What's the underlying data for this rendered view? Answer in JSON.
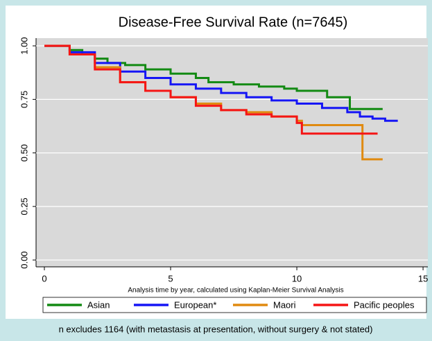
{
  "chart_data": {
    "type": "line",
    "drawstyle": "steps-post",
    "title": "Disease-Free Survival Rate (n=7645)",
    "x_label": "Analysis time by year, calculated using Kaplan-Meier Survival Analysis",
    "footnote": "n excludes 1164 (with metastasis at presentation, without surgery & not stated)",
    "xlim": [
      -0.33,
      15.19
    ],
    "ylim": [
      -0.032,
      1.036
    ],
    "xticks": [
      0,
      5,
      10,
      15
    ],
    "yticks": [
      {
        "value": 0,
        "label": "0.00"
      },
      {
        "value": 0.25,
        "label": "0.25"
      },
      {
        "value": 0.5,
        "label": "0.50"
      },
      {
        "value": 0.75,
        "label": "0.75"
      },
      {
        "value": 1,
        "label": "1.00"
      }
    ],
    "grid": true,
    "legend": "bottom",
    "series": [
      {
        "name": "Asian",
        "color": "#138a13",
        "x": [
          0,
          1,
          1.5,
          2,
          2.5,
          3.2,
          4,
          5,
          6,
          6.5,
          7.5,
          8.5,
          9.5,
          10,
          11.2,
          12.1,
          13.4
        ],
        "values": [
          1,
          0.98,
          0.96,
          0.94,
          0.92,
          0.91,
          0.89,
          0.87,
          0.85,
          0.83,
          0.82,
          0.81,
          0.8,
          0.79,
          0.76,
          0.705,
          0.705
        ]
      },
      {
        "name": "European*",
        "color": "#1515f5",
        "x": [
          0,
          1,
          2,
          3,
          4,
          5,
          6,
          7,
          8,
          9,
          10,
          11,
          12,
          12.5,
          13,
          13.5,
          14
        ],
        "values": [
          1,
          0.97,
          0.92,
          0.88,
          0.85,
          0.82,
          0.8,
          0.78,
          0.76,
          0.745,
          0.73,
          0.71,
          0.69,
          0.67,
          0.66,
          0.65,
          0.65
        ]
      },
      {
        "name": "Maori",
        "color": "#e08a10",
        "x": [
          0,
          1,
          2,
          3,
          4,
          5,
          6,
          7,
          8,
          9,
          10,
          10.2,
          12.6,
          13.4
        ],
        "values": [
          1,
          0.96,
          0.9,
          0.83,
          0.79,
          0.76,
          0.73,
          0.7,
          0.69,
          0.67,
          0.65,
          0.63,
          0.47,
          0.47
        ]
      },
      {
        "name": "Pacific peoples",
        "color": "#f51515",
        "x": [
          0,
          1,
          2,
          3,
          4,
          5,
          6,
          7,
          8,
          9,
          10,
          10.2,
          13.2
        ],
        "values": [
          1,
          0.96,
          0.89,
          0.83,
          0.79,
          0.76,
          0.72,
          0.7,
          0.68,
          0.67,
          0.64,
          0.59,
          0.59
        ]
      }
    ]
  }
}
